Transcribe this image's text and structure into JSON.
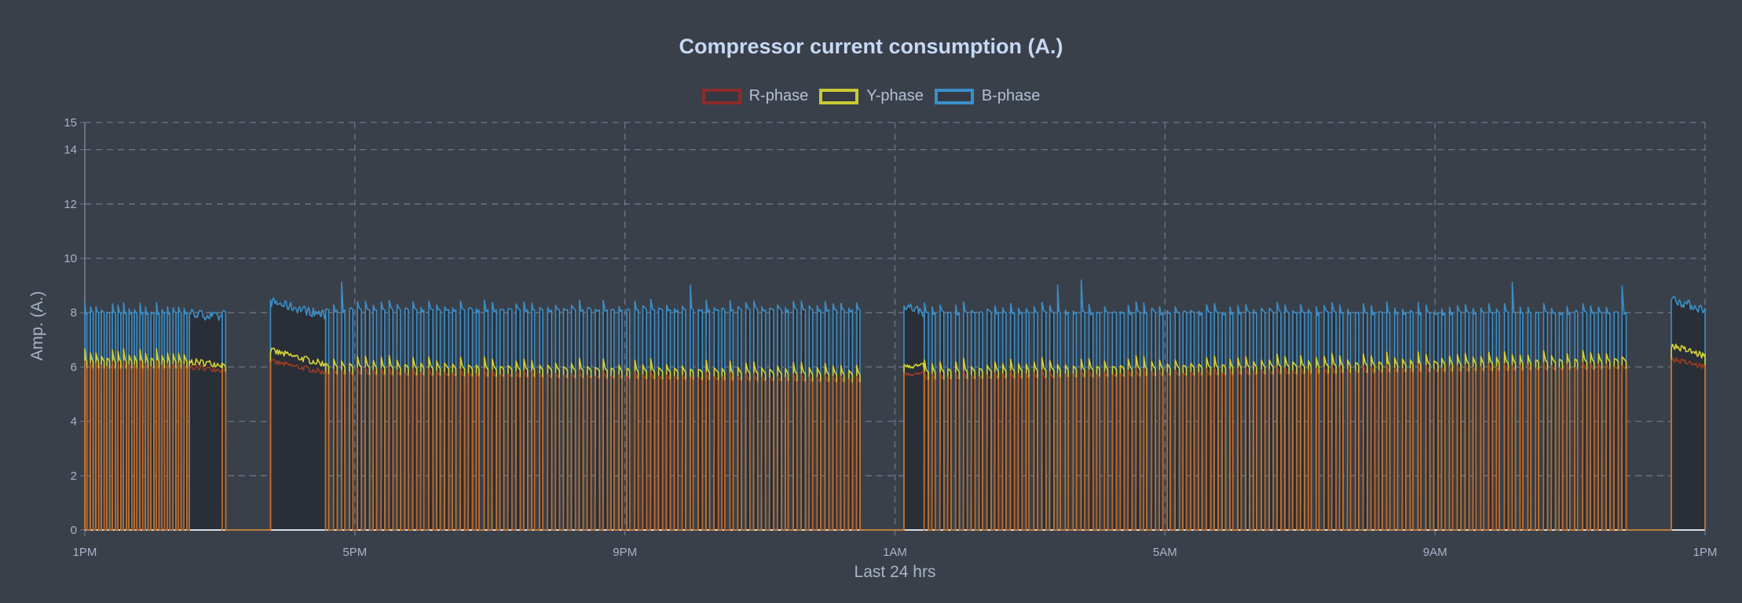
{
  "chart_data": {
    "type": "line",
    "title": "Compressor current consumption (A.)",
    "xlabel": "Last 24 hrs",
    "ylabel": "Amp. (A.)",
    "x_ticks": [
      "1PM",
      "5PM",
      "9PM",
      "1AM",
      "5AM",
      "9AM",
      "1PM"
    ],
    "y_ticks": [
      0,
      2,
      4,
      6,
      8,
      10,
      12,
      14,
      15
    ],
    "ylim": [
      0,
      15
    ],
    "grid": true,
    "legend_position": "top",
    "series": [
      {
        "name": "R-phase",
        "color": "#8b2c2c"
      },
      {
        "name": "Y-phase",
        "color": "#c9c934"
      },
      {
        "name": "B-phase",
        "color": "#3a8fc9"
      }
    ],
    "segments": [
      {
        "from": "13:00",
        "to": "14:33",
        "mode": "cycling",
        "cycles": 19,
        "R": [
          6.0,
          6.0
        ],
        "Y": [
          6.3,
          6.3
        ],
        "B": [
          8.0,
          8.0
        ]
      },
      {
        "from": "14:33",
        "to": "15:02",
        "mode": "on",
        "R": [
          6.0,
          5.9
        ],
        "Y": [
          6.2,
          6.1
        ],
        "B": [
          8.0,
          7.8
        ]
      },
      {
        "from": "15:02",
        "to": "15:09",
        "mode": "cycling",
        "cycles": 1,
        "R": [
          5.9,
          5.9
        ],
        "Y": [
          6.1,
          6.1
        ],
        "B": [
          8.0,
          8.0
        ]
      },
      {
        "from": "15:09",
        "to": "15:45",
        "mode": "off"
      },
      {
        "from": "15:45",
        "to": "16:34",
        "mode": "on",
        "R": [
          6.2,
          5.8
        ],
        "Y": [
          6.6,
          6.1
        ],
        "B": [
          8.4,
          7.9
        ]
      },
      {
        "from": "16:34",
        "to": "00:33",
        "mode": "cycling",
        "cycles": 68,
        "R": [
          5.8,
          5.5
        ],
        "Y": [
          6.1,
          5.8
        ],
        "B": [
          8.1,
          8.1
        ]
      },
      {
        "from": "00:33",
        "to": "01:08",
        "mode": "off"
      },
      {
        "from": "01:08",
        "to": "01:26",
        "mode": "on",
        "R": [
          5.8,
          5.7
        ],
        "Y": [
          6.1,
          6.0
        ],
        "B": [
          8.3,
          8.0
        ]
      },
      {
        "from": "01:26",
        "to": "11:53",
        "mode": "cycling",
        "cycles": 90,
        "R": [
          5.6,
          6.0
        ],
        "Y": [
          5.9,
          6.3
        ],
        "B": [
          8.0,
          8.0
        ]
      },
      {
        "from": "11:53",
        "to": "12:30",
        "mode": "off"
      },
      {
        "from": "12:30",
        "to": "13:00",
        "mode": "on",
        "R": [
          6.3,
          6.0
        ],
        "Y": [
          6.8,
          6.4
        ],
        "B": [
          8.5,
          8.1
        ]
      }
    ]
  }
}
